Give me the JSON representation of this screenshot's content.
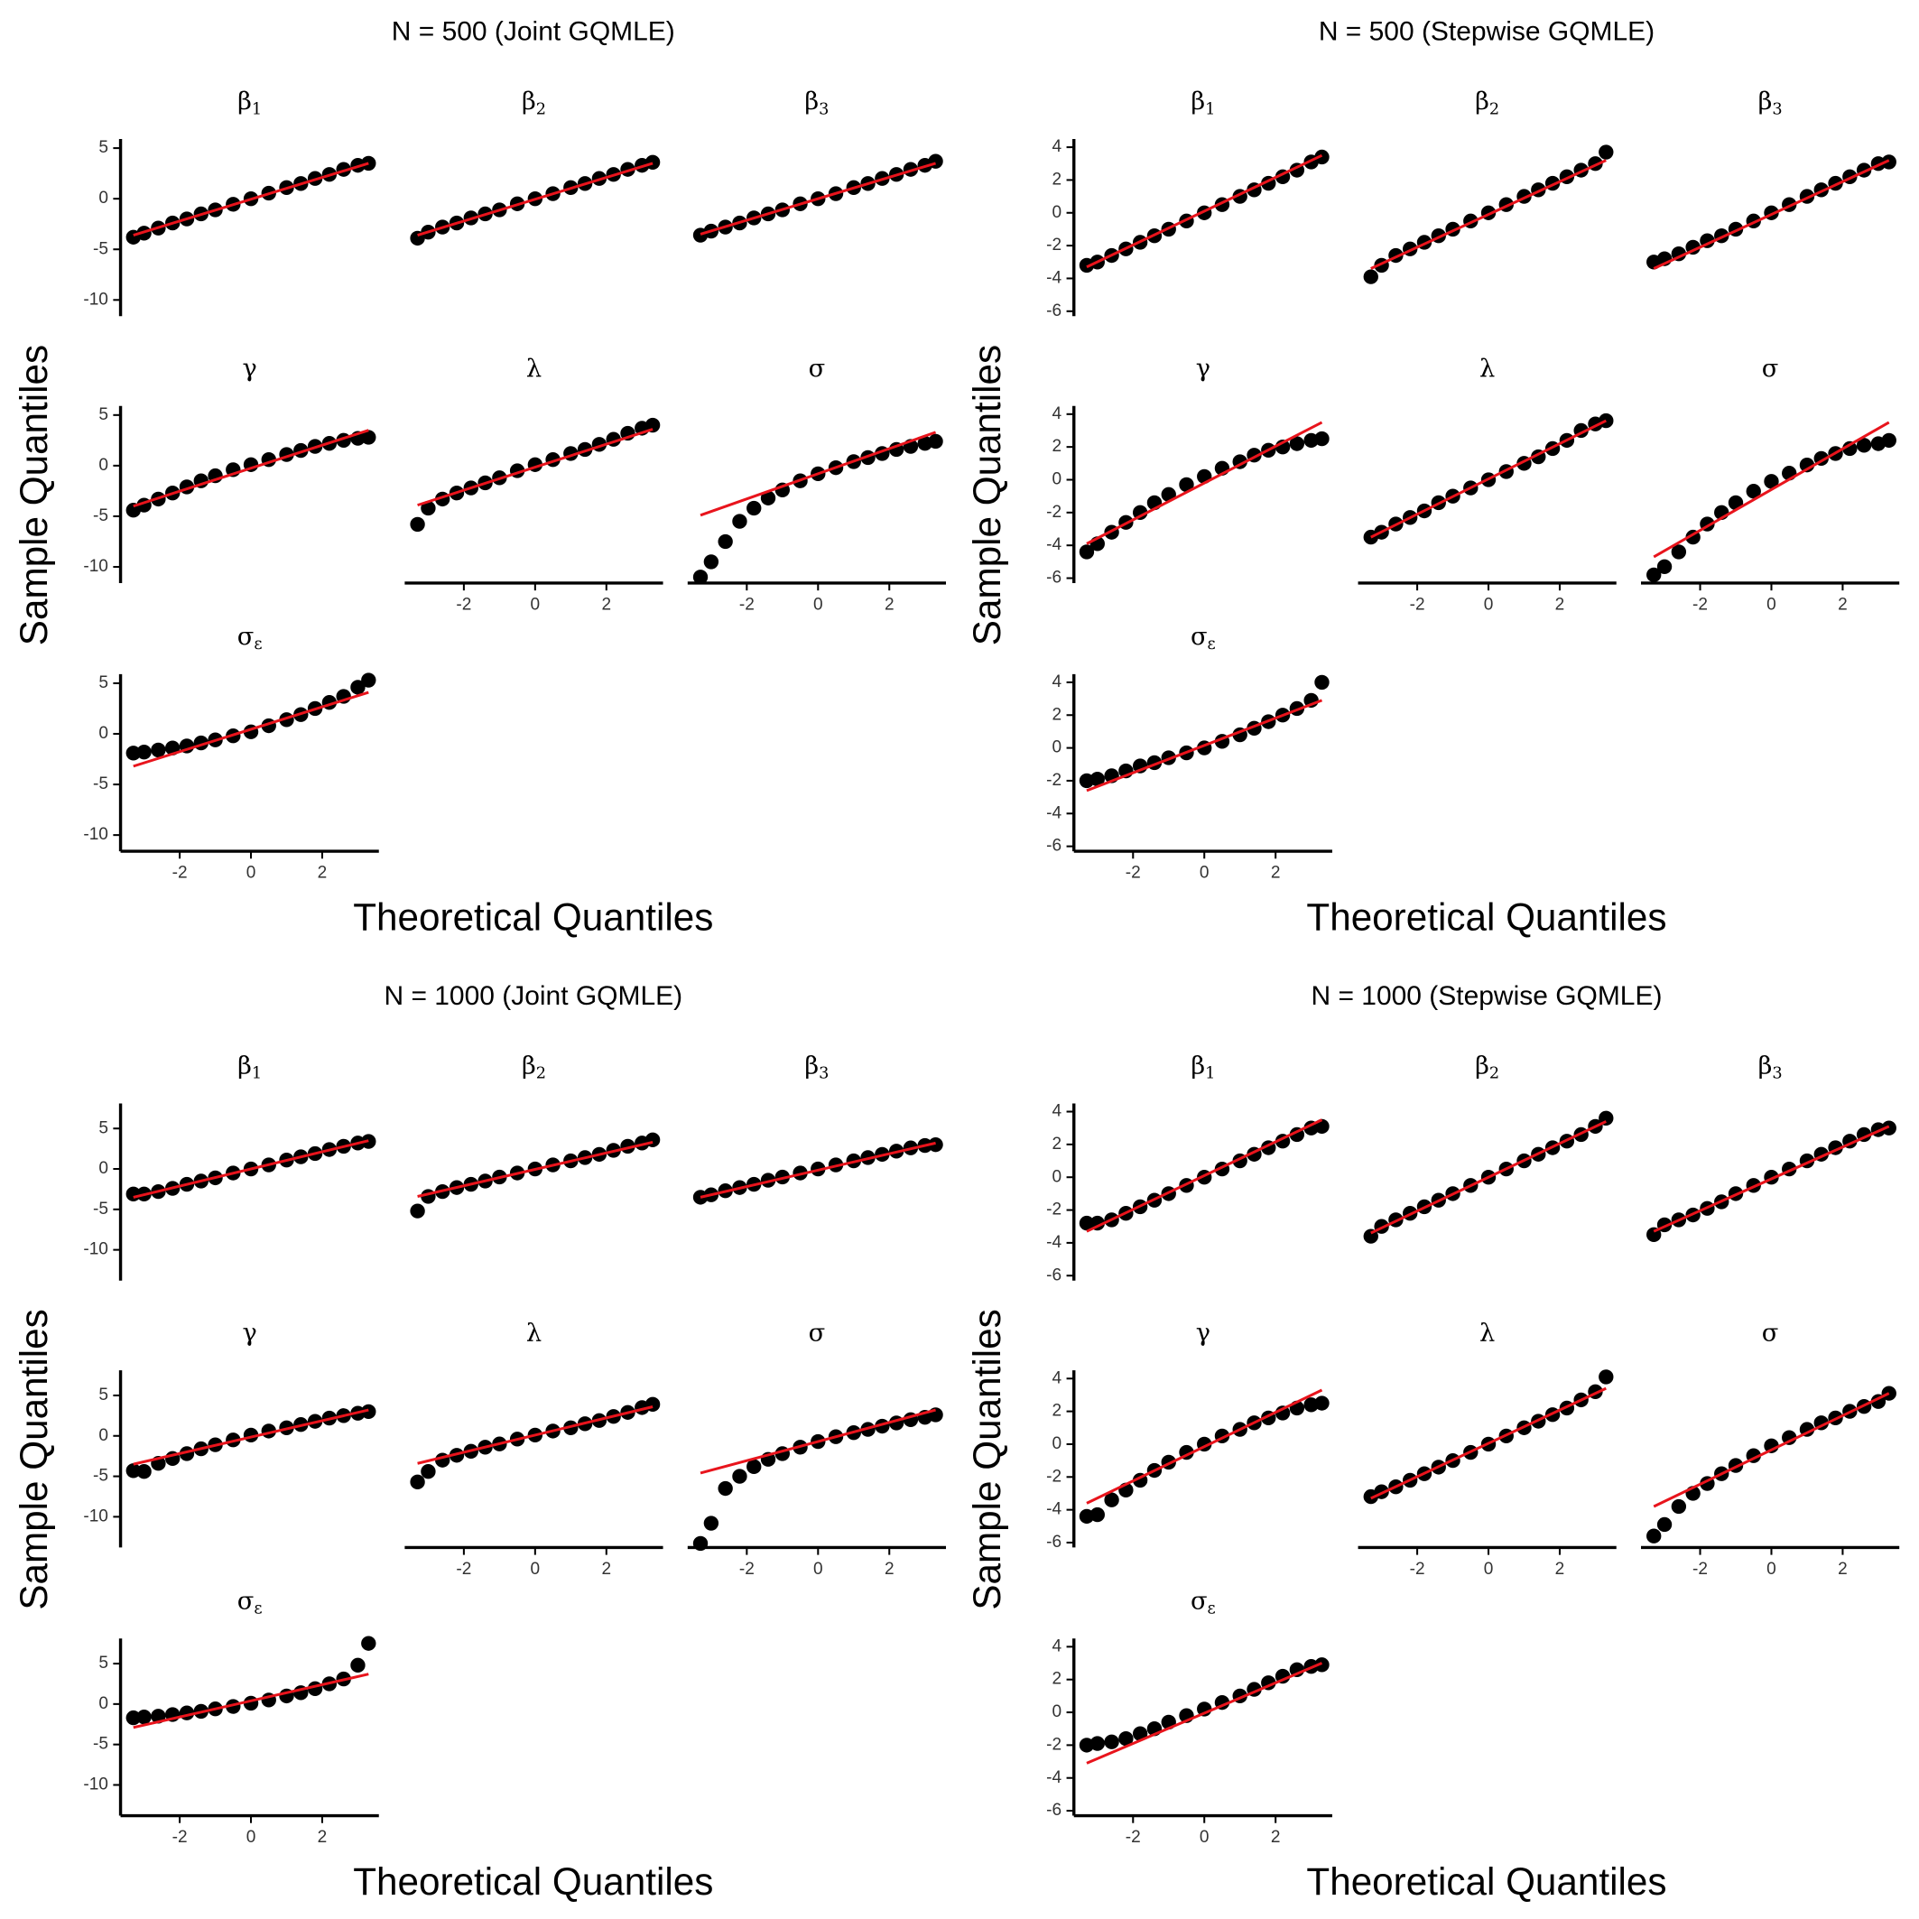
{
  "chart_data": [
    {
      "type": "scatter",
      "title": "N = 500 (Joint GQMLE)",
      "xlabel": "Theoretical Quantiles",
      "ylabel": "Sample Quantiles",
      "point_color": "#000000",
      "line_color": "#e8141c",
      "xlim": [
        -3.66,
        3.59
      ],
      "xticks": [
        -2,
        0,
        2
      ],
      "ylim": [
        -11.6,
        5.9
      ],
      "yticks": [
        -10,
        -5,
        0,
        5
      ],
      "x": [
        -3.3,
        -3,
        -2.6,
        -2.2,
        -1.8,
        -1.4,
        -1,
        -0.5,
        0,
        0.5,
        1,
        1.4,
        1.8,
        2.2,
        2.6,
        3,
        3.3
      ],
      "facets": [
        {
          "label": {
            "symbol": "β",
            "sub": "1"
          },
          "values": [
            -3.8,
            -3.4,
            -2.9,
            -2.4,
            -2.0,
            -1.5,
            -1.1,
            -0.55,
            0,
            0.55,
            1.1,
            1.5,
            2.0,
            2.4,
            2.9,
            3.3,
            3.5
          ],
          "line_x": [
            -3.3,
            3.3
          ],
          "line_y": [
            -3.6,
            3.5
          ]
        },
        {
          "label": {
            "symbol": "β",
            "sub": "2"
          },
          "values": [
            -3.9,
            -3.3,
            -2.8,
            -2.4,
            -1.9,
            -1.5,
            -1.1,
            -0.5,
            0,
            0.5,
            1.1,
            1.5,
            2.0,
            2.4,
            2.9,
            3.3,
            3.6
          ],
          "line_x": [
            -3.3,
            3.3
          ],
          "line_y": [
            -3.6,
            3.5
          ]
        },
        {
          "label": {
            "symbol": "β",
            "sub": "3"
          },
          "values": [
            -3.6,
            -3.2,
            -2.8,
            -2.4,
            -1.9,
            -1.5,
            -1.1,
            -0.5,
            0,
            0.5,
            1.1,
            1.5,
            2.0,
            2.4,
            2.9,
            3.3,
            3.7
          ],
          "line_x": [
            -3.3,
            3.3
          ],
          "line_y": [
            -3.5,
            3.5
          ]
        },
        {
          "label": {
            "symbol": "γ"
          },
          "values": [
            -4.4,
            -3.9,
            -3.3,
            -2.7,
            -2.1,
            -1.5,
            -1.0,
            -0.4,
            0.1,
            0.6,
            1.1,
            1.5,
            1.9,
            2.2,
            2.5,
            2.7,
            2.8
          ],
          "line_x": [
            -3.3,
            3.3
          ],
          "line_y": [
            -4.0,
            3.5
          ]
        },
        {
          "label": {
            "symbol": "λ"
          },
          "values": [
            -5.8,
            -4.2,
            -3.3,
            -2.7,
            -2.2,
            -1.7,
            -1.2,
            -0.5,
            0.1,
            0.6,
            1.2,
            1.6,
            2.1,
            2.6,
            3.2,
            3.7,
            4.0
          ],
          "line_x": [
            -3.3,
            3.3
          ],
          "line_y": [
            -3.9,
            3.6
          ]
        },
        {
          "label": {
            "symbol": "σ"
          },
          "values": [
            -11,
            -9.5,
            -7.5,
            -5.5,
            -4.2,
            -3.2,
            -2.4,
            -1.5,
            -0.8,
            -0.2,
            0.4,
            0.8,
            1.2,
            1.6,
            1.9,
            2.2,
            2.4
          ],
          "line_x": [
            -3.3,
            3.3
          ],
          "line_y": [
            -4.9,
            3.3
          ]
        },
        {
          "label": {
            "symbol": "σ",
            "sub": "ε"
          },
          "values": [
            -1.9,
            -1.8,
            -1.6,
            -1.4,
            -1.2,
            -0.9,
            -0.6,
            -0.2,
            0.2,
            0.8,
            1.4,
            1.9,
            2.5,
            3.1,
            3.7,
            4.6,
            5.3
          ],
          "line_x": [
            -3.3,
            3.3
          ],
          "line_y": [
            -3.2,
            4.1
          ]
        }
      ]
    },
    {
      "type": "scatter",
      "title": "N = 500 (Stepwise GQMLE)",
      "xlabel": "Theoretical Quantiles",
      "ylabel": "Sample Quantiles",
      "point_color": "#000000",
      "line_color": "#e8141c",
      "xlim": [
        -3.66,
        3.59
      ],
      "xticks": [
        -2,
        0,
        2
      ],
      "ylim": [
        -6.3,
        4.5
      ],
      "yticks": [
        -6,
        -4,
        -2,
        0,
        2,
        4
      ],
      "x": [
        -3.3,
        -3,
        -2.6,
        -2.2,
        -1.8,
        -1.4,
        -1,
        -0.5,
        0,
        0.5,
        1,
        1.4,
        1.8,
        2.2,
        2.6,
        3,
        3.3
      ],
      "facets": [
        {
          "label": {
            "symbol": "β",
            "sub": "1"
          },
          "values": [
            -3.2,
            -3.0,
            -2.6,
            -2.2,
            -1.8,
            -1.4,
            -1.0,
            -0.5,
            0,
            0.5,
            1.0,
            1.4,
            1.8,
            2.2,
            2.6,
            3.1,
            3.4
          ],
          "line_x": [
            -3.3,
            3.3
          ],
          "line_y": [
            -3.3,
            3.5
          ]
        },
        {
          "label": {
            "symbol": "β",
            "sub": "2"
          },
          "values": [
            -3.9,
            -3.2,
            -2.6,
            -2.2,
            -1.8,
            -1.4,
            -1.0,
            -0.5,
            0,
            0.5,
            1.0,
            1.4,
            1.8,
            2.2,
            2.6,
            3.0,
            3.7
          ],
          "line_x": [
            -3.3,
            3.3
          ],
          "line_y": [
            -3.4,
            3.2
          ]
        },
        {
          "label": {
            "symbol": "β",
            "sub": "3"
          },
          "values": [
            -3.0,
            -2.8,
            -2.5,
            -2.1,
            -1.7,
            -1.4,
            -1.0,
            -0.5,
            0,
            0.5,
            1.0,
            1.4,
            1.8,
            2.2,
            2.6,
            3.0,
            3.1
          ],
          "line_x": [
            -3.3,
            3.3
          ],
          "line_y": [
            -3.4,
            3.2
          ]
        },
        {
          "label": {
            "symbol": "γ"
          },
          "values": [
            -4.4,
            -3.9,
            -3.2,
            -2.6,
            -2.0,
            -1.4,
            -0.9,
            -0.3,
            0.2,
            0.7,
            1.1,
            1.5,
            1.8,
            2.0,
            2.2,
            2.4,
            2.5
          ],
          "line_x": [
            -3.3,
            3.3
          ],
          "line_y": [
            -3.9,
            3.5
          ]
        },
        {
          "label": {
            "symbol": "λ"
          },
          "values": [
            -3.5,
            -3.2,
            -2.7,
            -2.3,
            -1.9,
            -1.4,
            -1.0,
            -0.5,
            0,
            0.5,
            1.0,
            1.4,
            1.9,
            2.4,
            3.0,
            3.4,
            3.6
          ],
          "line_x": [
            -3.3,
            3.3
          ],
          "line_y": [
            -3.5,
            3.6
          ]
        },
        {
          "label": {
            "symbol": "σ"
          },
          "values": [
            -5.8,
            -5.3,
            -4.4,
            -3.5,
            -2.7,
            -2.0,
            -1.4,
            -0.7,
            -0.1,
            0.4,
            0.9,
            1.3,
            1.6,
            1.9,
            2.1,
            2.2,
            2.4
          ],
          "line_x": [
            -3.3,
            3.3
          ],
          "line_y": [
            -4.7,
            3.5
          ]
        },
        {
          "label": {
            "symbol": "σ",
            "sub": "ε"
          },
          "values": [
            -2.0,
            -1.9,
            -1.7,
            -1.4,
            -1.1,
            -0.9,
            -0.6,
            -0.3,
            0.0,
            0.4,
            0.8,
            1.2,
            1.6,
            2.0,
            2.4,
            2.9,
            4.0
          ],
          "line_x": [
            -3.3,
            3.3
          ],
          "line_y": [
            -2.6,
            2.9
          ]
        }
      ]
    },
    {
      "type": "scatter",
      "title": "N = 1000 (Joint GQMLE)",
      "xlabel": "Theoretical Quantiles",
      "ylabel": "Sample Quantiles",
      "point_color": "#000000",
      "line_color": "#e8141c",
      "xlim": [
        -3.66,
        3.59
      ],
      "xticks": [
        -2,
        0,
        2
      ],
      "ylim": [
        -13.8,
        8.1
      ],
      "yticks": [
        -10,
        -5,
        0,
        5
      ],
      "x": [
        -3.3,
        -3,
        -2.6,
        -2.2,
        -1.8,
        -1.4,
        -1,
        -0.5,
        0,
        0.5,
        1,
        1.4,
        1.8,
        2.2,
        2.6,
        3,
        3.3
      ],
      "facets": [
        {
          "label": {
            "symbol": "β",
            "sub": "1"
          },
          "values": [
            -3.1,
            -3.1,
            -2.8,
            -2.4,
            -1.9,
            -1.5,
            -1.1,
            -0.5,
            0,
            0.5,
            1.1,
            1.5,
            1.9,
            2.4,
            2.8,
            3.2,
            3.4
          ],
          "line_x": [
            -3.3,
            3.3
          ],
          "line_y": [
            -3.5,
            3.5
          ]
        },
        {
          "label": {
            "symbol": "β",
            "sub": "2"
          },
          "values": [
            -5.2,
            -3.4,
            -2.8,
            -2.3,
            -1.9,
            -1.5,
            -1.0,
            -0.5,
            0,
            0.5,
            1.0,
            1.4,
            1.8,
            2.3,
            2.8,
            3.2,
            3.6
          ],
          "line_x": [
            -3.3,
            3.3
          ],
          "line_y": [
            -3.4,
            3.3
          ]
        },
        {
          "label": {
            "symbol": "β",
            "sub": "3"
          },
          "values": [
            -3.5,
            -3.2,
            -2.7,
            -2.3,
            -1.9,
            -1.4,
            -1.0,
            -0.5,
            0,
            0.5,
            1.0,
            1.4,
            1.8,
            2.2,
            2.6,
            2.9,
            3.0
          ],
          "line_x": [
            -3.3,
            3.3
          ],
          "line_y": [
            -3.5,
            3.2
          ]
        },
        {
          "label": {
            "symbol": "γ"
          },
          "values": [
            -4.3,
            -4.4,
            -3.4,
            -2.8,
            -2.2,
            -1.6,
            -1.1,
            -0.5,
            0.1,
            0.6,
            1.0,
            1.4,
            1.8,
            2.2,
            2.5,
            2.8,
            3.0
          ],
          "line_x": [
            -3.3,
            3.3
          ],
          "line_y": [
            -3.5,
            3.2
          ]
        },
        {
          "label": {
            "symbol": "λ"
          },
          "values": [
            -5.7,
            -4.4,
            -3.0,
            -2.4,
            -1.9,
            -1.4,
            -1.0,
            -0.4,
            0.1,
            0.6,
            1.0,
            1.5,
            1.9,
            2.4,
            2.9,
            3.5,
            3.9
          ],
          "line_x": [
            -3.3,
            3.3
          ],
          "line_y": [
            -3.4,
            3.6
          ]
        },
        {
          "label": {
            "symbol": "σ"
          },
          "values": [
            -13.3,
            -10.8,
            -6.5,
            -5.0,
            -3.8,
            -2.9,
            -2.2,
            -1.4,
            -0.7,
            -0.1,
            0.4,
            0.8,
            1.2,
            1.6,
            2.0,
            2.3,
            2.6
          ],
          "line_x": [
            -3.3,
            3.3
          ],
          "line_y": [
            -4.6,
            3.2
          ]
        },
        {
          "label": {
            "symbol": "σ",
            "sub": "ε"
          },
          "values": [
            -1.7,
            -1.6,
            -1.5,
            -1.3,
            -1.1,
            -0.9,
            -0.6,
            -0.3,
            0.1,
            0.5,
            1.0,
            1.4,
            1.9,
            2.5,
            3.1,
            4.8,
            7.5
          ],
          "line_x": [
            -3.3,
            3.3
          ],
          "line_y": [
            -2.9,
            3.7
          ]
        }
      ]
    },
    {
      "type": "scatter",
      "title": "N = 1000 (Stepwise GQMLE)",
      "xlabel": "Theoretical Quantiles",
      "ylabel": "Sample Quantiles",
      "point_color": "#000000",
      "line_color": "#e8141c",
      "xlim": [
        -3.66,
        3.59
      ],
      "xticks": [
        -2,
        0,
        2
      ],
      "ylim": [
        -6.3,
        4.5
      ],
      "yticks": [
        -6,
        -4,
        -2,
        0,
        2,
        4
      ],
      "x": [
        -3.3,
        -3,
        -2.6,
        -2.2,
        -1.8,
        -1.4,
        -1,
        -0.5,
        0,
        0.5,
        1,
        1.4,
        1.8,
        2.2,
        2.6,
        3,
        3.3
      ],
      "facets": [
        {
          "label": {
            "symbol": "β",
            "sub": "1"
          },
          "values": [
            -2.8,
            -2.8,
            -2.6,
            -2.2,
            -1.8,
            -1.4,
            -1.0,
            -0.5,
            0,
            0.5,
            1.0,
            1.4,
            1.8,
            2.2,
            2.6,
            3.0,
            3.1
          ],
          "line_x": [
            -3.3,
            3.3
          ],
          "line_y": [
            -3.3,
            3.5
          ]
        },
        {
          "label": {
            "symbol": "β",
            "sub": "2"
          },
          "values": [
            -3.6,
            -3.0,
            -2.6,
            -2.2,
            -1.8,
            -1.4,
            -1.0,
            -0.5,
            0,
            0.5,
            1.0,
            1.4,
            1.8,
            2.2,
            2.6,
            3.1,
            3.6
          ],
          "line_x": [
            -3.3,
            3.3
          ],
          "line_y": [
            -3.4,
            3.4
          ]
        },
        {
          "label": {
            "symbol": "β",
            "sub": "3"
          },
          "values": [
            -3.5,
            -2.9,
            -2.6,
            -2.3,
            -1.9,
            -1.5,
            -1.0,
            -0.5,
            0,
            0.5,
            1.0,
            1.4,
            1.8,
            2.2,
            2.6,
            2.9,
            3.0
          ],
          "line_x": [
            -3.3,
            3.3
          ],
          "line_y": [
            -3.3,
            3.1
          ]
        },
        {
          "label": {
            "symbol": "γ"
          },
          "values": [
            -4.4,
            -4.3,
            -3.4,
            -2.8,
            -2.2,
            -1.6,
            -1.1,
            -0.5,
            0,
            0.5,
            0.9,
            1.3,
            1.6,
            1.9,
            2.2,
            2.4,
            2.5
          ],
          "line_x": [
            -3.3,
            3.3
          ],
          "line_y": [
            -3.6,
            3.3
          ]
        },
        {
          "label": {
            "symbol": "λ"
          },
          "values": [
            -3.2,
            -2.9,
            -2.6,
            -2.2,
            -1.8,
            -1.4,
            -1.0,
            -0.5,
            0,
            0.5,
            1.0,
            1.4,
            1.8,
            2.2,
            2.7,
            3.2,
            4.1
          ],
          "line_x": [
            -3.3,
            3.3
          ],
          "line_y": [
            -3.3,
            3.4
          ]
        },
        {
          "label": {
            "symbol": "σ"
          },
          "values": [
            -5.6,
            -4.9,
            -3.8,
            -3.0,
            -2.4,
            -1.8,
            -1.3,
            -0.7,
            -0.1,
            0.4,
            0.9,
            1.3,
            1.6,
            2.0,
            2.3,
            2.6,
            3.1
          ],
          "line_x": [
            -3.3,
            3.3
          ],
          "line_y": [
            -3.8,
            3.1
          ]
        },
        {
          "label": {
            "symbol": "σ",
            "sub": "ε"
          },
          "values": [
            -2.0,
            -1.9,
            -1.8,
            -1.6,
            -1.3,
            -1.0,
            -0.6,
            -0.2,
            0.2,
            0.6,
            1.0,
            1.4,
            1.8,
            2.2,
            2.6,
            2.8,
            2.9
          ],
          "line_x": [
            -3.3,
            3.3
          ],
          "line_y": [
            -3.1,
            3.0
          ]
        }
      ]
    }
  ]
}
